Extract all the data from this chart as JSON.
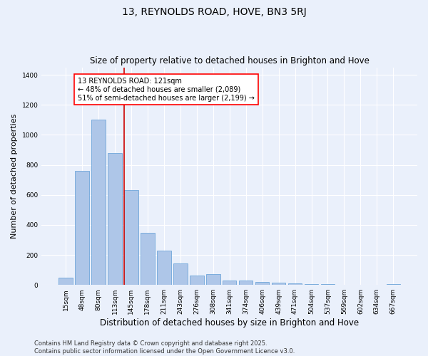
{
  "title": "13, REYNOLDS ROAD, HOVE, BN3 5RJ",
  "subtitle": "Size of property relative to detached houses in Brighton and Hove",
  "xlabel": "Distribution of detached houses by size in Brighton and Hove",
  "ylabel": "Number of detached properties",
  "categories": [
    "15sqm",
    "48sqm",
    "80sqm",
    "113sqm",
    "145sqm",
    "178sqm",
    "211sqm",
    "243sqm",
    "276sqm",
    "308sqm",
    "341sqm",
    "374sqm",
    "406sqm",
    "439sqm",
    "471sqm",
    "504sqm",
    "537sqm",
    "569sqm",
    "602sqm",
    "634sqm",
    "667sqm"
  ],
  "values": [
    50,
    760,
    1100,
    880,
    630,
    345,
    230,
    145,
    65,
    70,
    30,
    30,
    20,
    15,
    10,
    5,
    8,
    2,
    0,
    0,
    5
  ],
  "bar_color": "#aec6e8",
  "bar_edge_color": "#5b9bd5",
  "background_color": "#eaf0fb",
  "grid_color": "#ffffff",
  "red_line_x": 3.55,
  "annotation_text": "13 REYNOLDS ROAD: 121sqm\n← 48% of detached houses are smaller (2,089)\n51% of semi-detached houses are larger (2,199) →",
  "annotation_box_color": "white",
  "annotation_border_color": "red",
  "red_line_color": "#cc0000",
  "footer": "Contains HM Land Registry data © Crown copyright and database right 2025.\nContains public sector information licensed under the Open Government Licence v3.0.",
  "ylim": [
    0,
    1450
  ],
  "title_fontsize": 10,
  "subtitle_fontsize": 8.5,
  "xlabel_fontsize": 8.5,
  "ylabel_fontsize": 8,
  "tick_fontsize": 6.5,
  "annotation_fontsize": 7,
  "footer_fontsize": 6
}
